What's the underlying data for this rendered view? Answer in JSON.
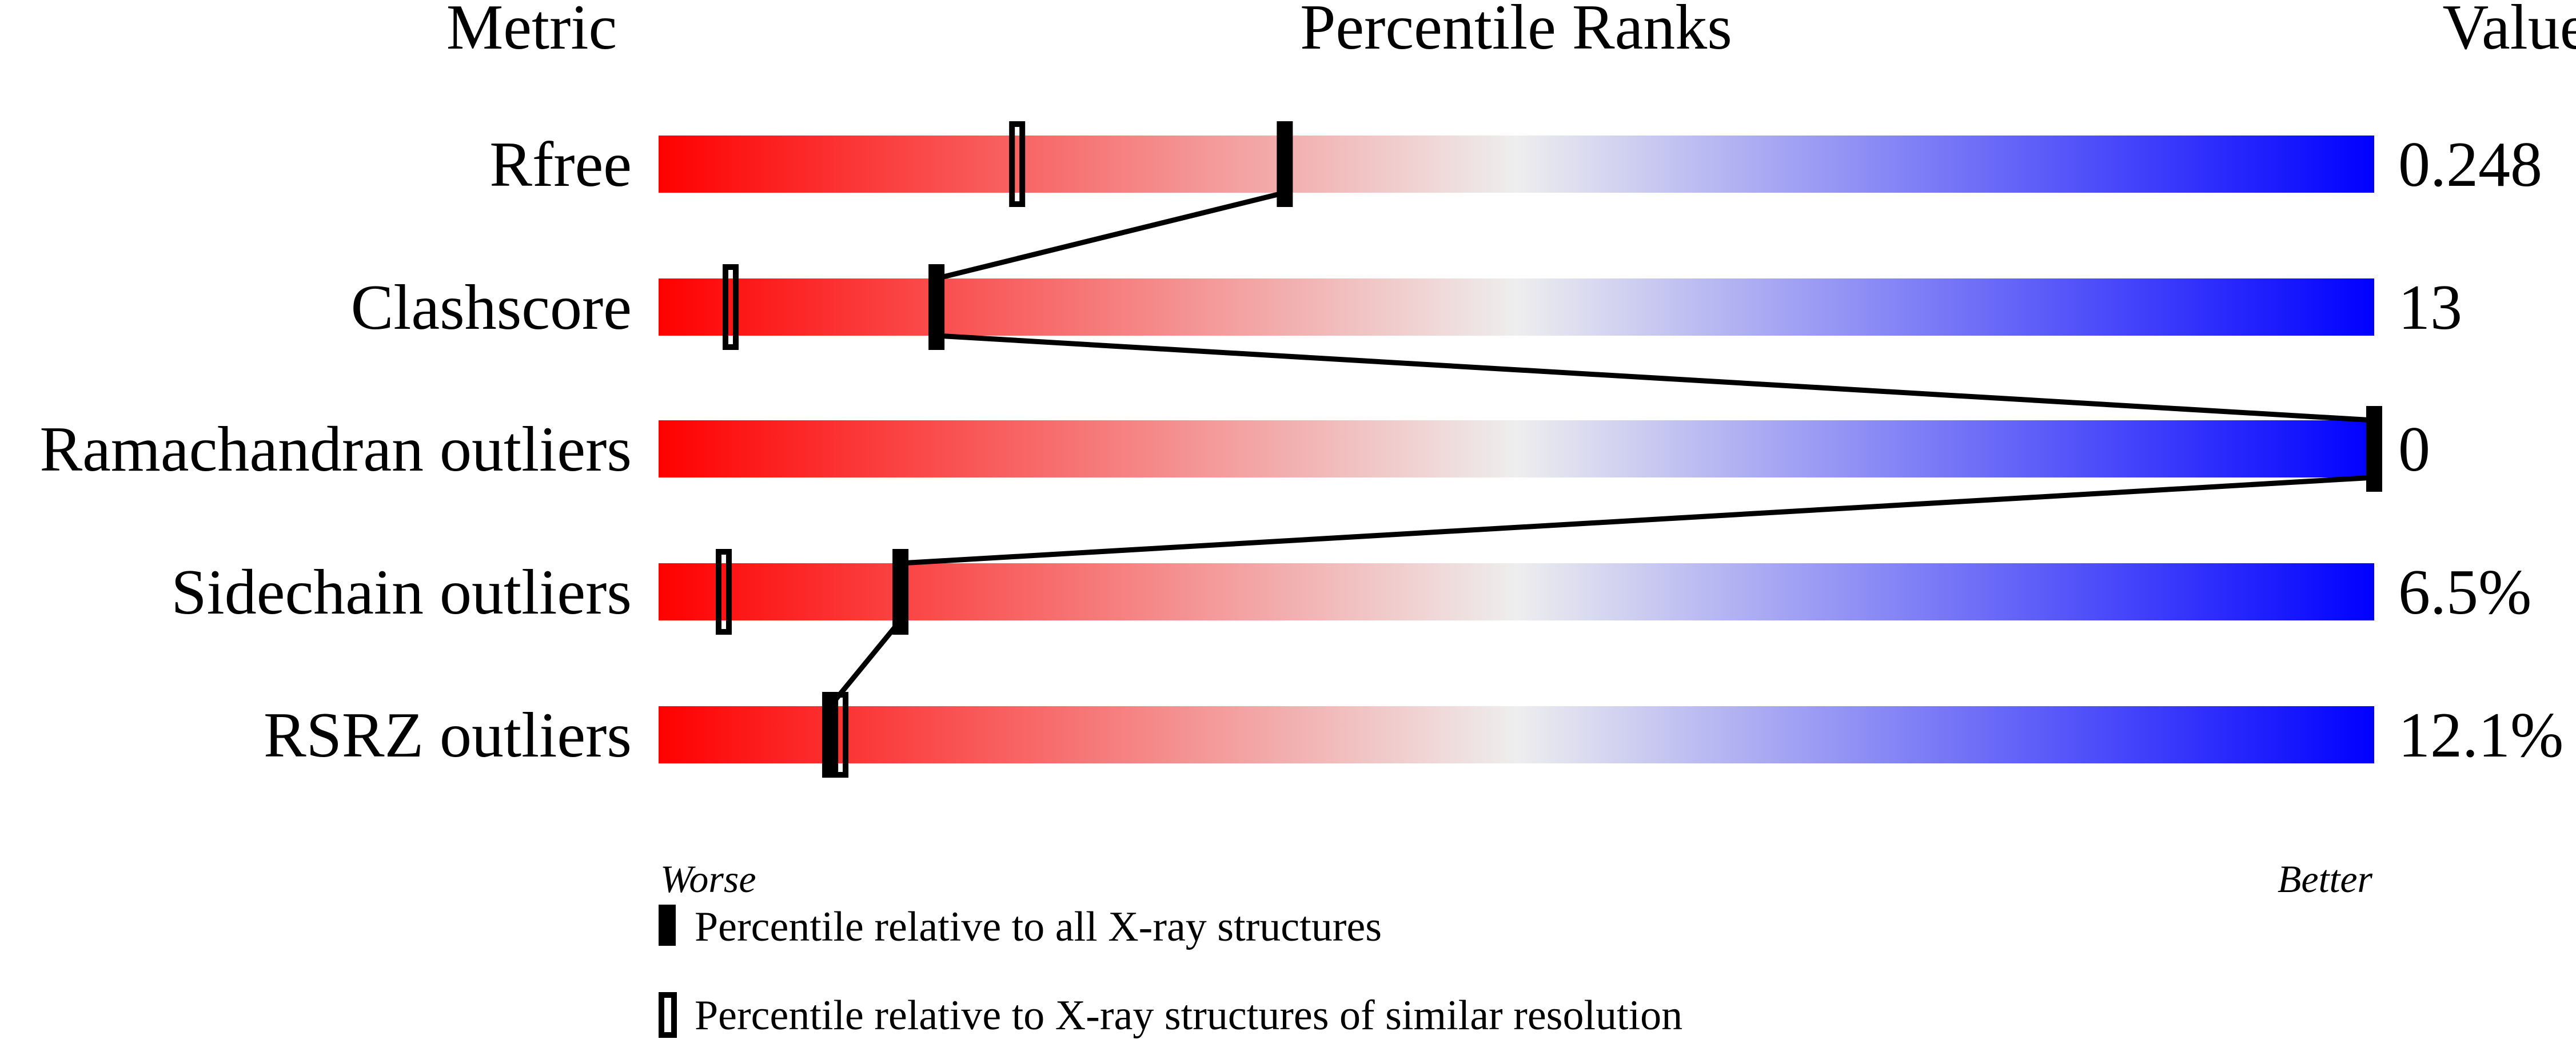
{
  "chart_data": {
    "type": "percentile-slider",
    "headers": {
      "metric": "Metric",
      "ranks": "Percentile Ranks",
      "value": "Value"
    },
    "xlim": [
      0,
      100
    ],
    "gradient_colors": {
      "worse": "#ff0000",
      "middle": "#eeeeee",
      "better": "#0000ff"
    },
    "axis_labels": {
      "worse": "Worse",
      "better": "Better"
    },
    "metrics": [
      {
        "name": "Rfree",
        "value": "0.248",
        "percentile_all": 36.5,
        "percentile_similar": 20.9
      },
      {
        "name": "Clashscore",
        "value": "13",
        "percentile_all": 16.2,
        "percentile_similar": 4.2
      },
      {
        "name": "Ramachandran outliers",
        "value": "0",
        "percentile_all": 100,
        "percentile_similar": 100
      },
      {
        "name": "Sidechain outliers",
        "value": "6.5%",
        "percentile_all": 14.1,
        "percentile_similar": 3.8
      },
      {
        "name": "RSRZ outliers",
        "value": "12.1%",
        "percentile_all": 10.0,
        "percentile_similar": 10.6
      }
    ],
    "legend": [
      {
        "marker": "filled",
        "label": "Percentile relative to all X-ray structures"
      },
      {
        "marker": "open",
        "label": "Percentile relative to X-ray structures of similar resolution"
      }
    ]
  }
}
